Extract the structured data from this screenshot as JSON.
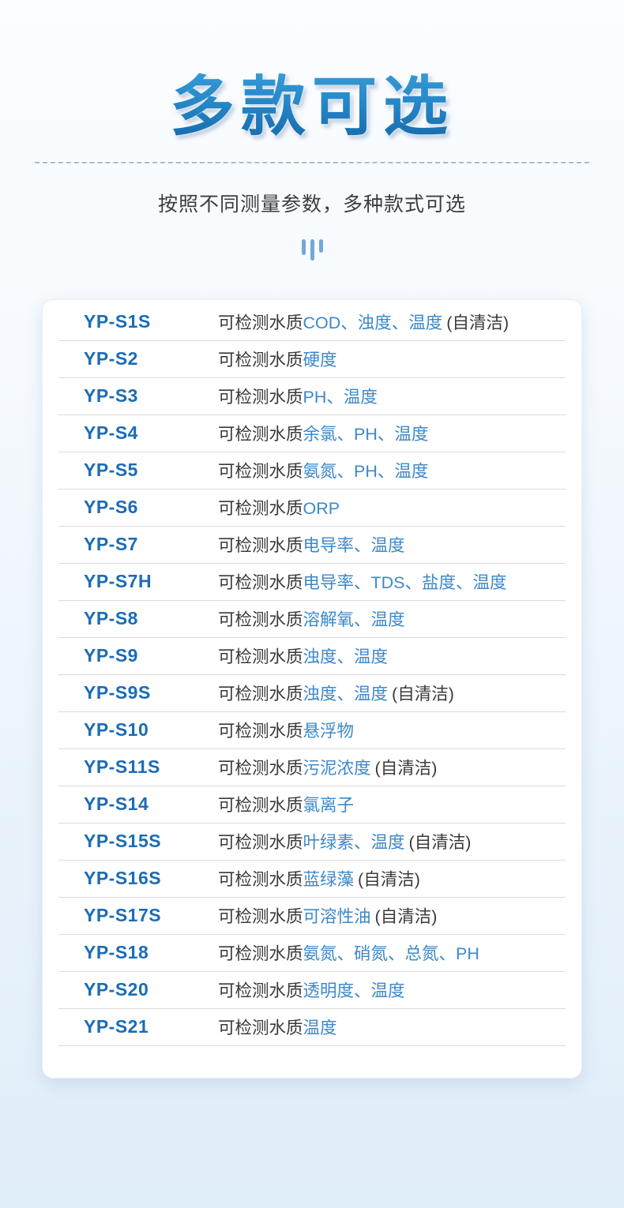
{
  "page": {
    "title": "多款可选",
    "subtitle": "按照不同测量参数，多种款式可选",
    "colors": {
      "title_blue": "#2487c8",
      "model_name_blue": "#1b6cb5",
      "param_blue": "#3e88c9",
      "body_text": "#3a3a3a",
      "icon_blue": "#74a8d8",
      "page_bg_top": "#fbfdff",
      "page_bg_bottom": "#e0eefa",
      "card_bg": "#ffffff"
    },
    "icon": "equalizer-bars-icon"
  },
  "table": {
    "rows": [
      {
        "model": "YP-S1S",
        "prefix": "可检测水质",
        "params": "COD、浊度、温度",
        "suffix": "(自清洁)"
      },
      {
        "model": "YP-S2",
        "prefix": "可检测水质",
        "params": "硬度",
        "suffix": ""
      },
      {
        "model": "YP-S3",
        "prefix": "可检测水质",
        "params": "PH、温度",
        "suffix": ""
      },
      {
        "model": "YP-S4",
        "prefix": "可检测水质",
        "params": "余氯、PH、温度",
        "suffix": ""
      },
      {
        "model": "YP-S5",
        "prefix": "可检测水质",
        "params": "氨氮、PH、温度",
        "suffix": ""
      },
      {
        "model": "YP-S6",
        "prefix": "可检测水质",
        "params": "ORP",
        "suffix": ""
      },
      {
        "model": "YP-S7",
        "prefix": "可检测水质",
        "params": "电导率、温度",
        "suffix": ""
      },
      {
        "model": "YP-S7H",
        "prefix": "可检测水质",
        "params": "电导率、TDS、盐度、温度",
        "suffix": ""
      },
      {
        "model": "YP-S8",
        "prefix": "可检测水质",
        "params": "溶解氧、温度",
        "suffix": ""
      },
      {
        "model": "YP-S9",
        "prefix": "可检测水质",
        "params": "浊度、温度",
        "suffix": ""
      },
      {
        "model": "YP-S9S",
        "prefix": "可检测水质",
        "params": "浊度、温度",
        "suffix": "(自清洁)"
      },
      {
        "model": "YP-S10",
        "prefix": "可检测水质",
        "params": "悬浮物",
        "suffix": ""
      },
      {
        "model": "YP-S11S",
        "prefix": "可检测水质",
        "params": "污泥浓度",
        "suffix": "(自清洁)"
      },
      {
        "model": "YP-S14",
        "prefix": "可检测水质",
        "params": "氯离子",
        "suffix": ""
      },
      {
        "model": "YP-S15S",
        "prefix": "可检测水质",
        "params": "叶绿素、温度",
        "suffix": "(自清洁)"
      },
      {
        "model": "YP-S16S",
        "prefix": "可检测水质",
        "params": "蓝绿藻",
        "suffix": "(自清洁)"
      },
      {
        "model": "YP-S17S",
        "prefix": "可检测水质",
        "params": "可溶性油",
        "suffix": "(自清洁)"
      },
      {
        "model": "YP-S18",
        "prefix": "可检测水质",
        "params": "氨氮、硝氮、总氮、PH",
        "suffix": ""
      },
      {
        "model": "YP-S20",
        "prefix": "可检测水质",
        "params": "透明度、温度",
        "suffix": ""
      },
      {
        "model": "YP-S21",
        "prefix": "可检测水质",
        "params": "温度",
        "suffix": ""
      }
    ]
  }
}
